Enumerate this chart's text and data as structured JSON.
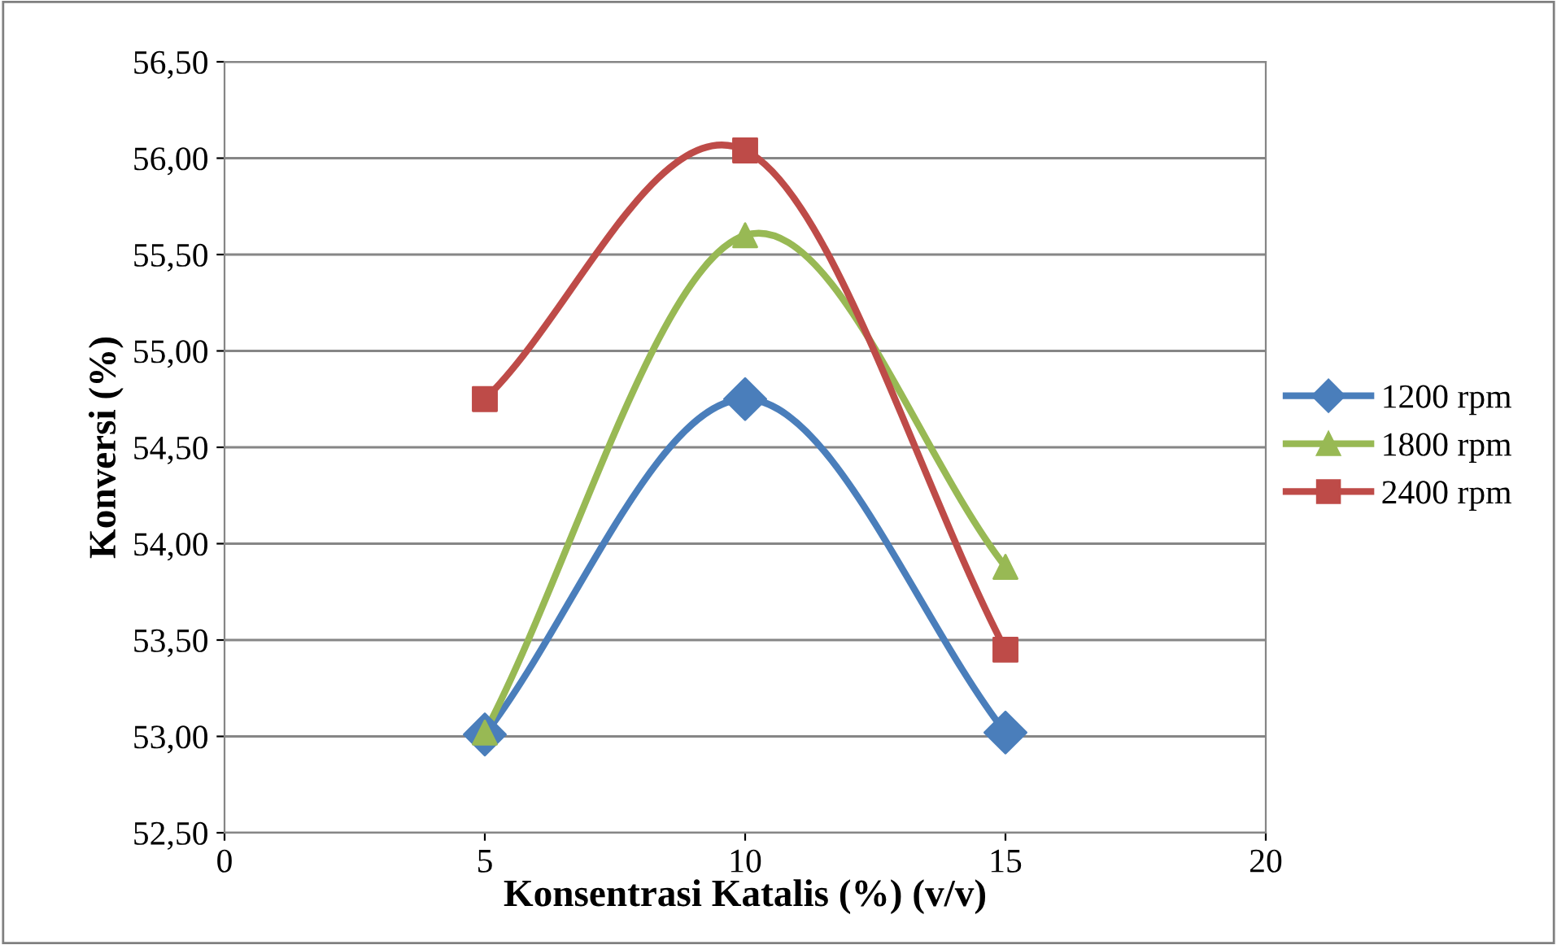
{
  "chart_data": {
    "type": "line",
    "xlabel": "Konsentrasi Katalis (%) (v/v)",
    "ylabel": "Konversi (%)",
    "x": [
      5,
      10,
      15
    ],
    "series": [
      {
        "name": "1200 rpm",
        "color": "#4a7ebb",
        "marker": "diamond",
        "values": [
          53.01,
          54.75,
          53.02
        ]
      },
      {
        "name": "1800 rpm",
        "color": "#98b954",
        "marker": "triangle",
        "values": [
          53.02,
          55.6,
          53.88
        ]
      },
      {
        "name": "2400 rpm",
        "color": "#be4b48",
        "marker": "square",
        "values": [
          54.75,
          56.04,
          53.45
        ]
      }
    ],
    "xlim": [
      0,
      20
    ],
    "xticks": [
      0,
      5,
      10,
      15,
      20
    ],
    "ylim": [
      52.5,
      56.5
    ],
    "yticks": [
      {
        "value": 52.5,
        "label": "52,50"
      },
      {
        "value": 53,
        "label": "53,00"
      },
      {
        "value": 53.5,
        "label": "53,50"
      },
      {
        "value": 54,
        "label": "54,00"
      },
      {
        "value": 54.5,
        "label": "54,50"
      },
      {
        "value": 55,
        "label": "55,00"
      },
      {
        "value": 55.5,
        "label": "55,50"
      },
      {
        "value": 56,
        "label": "56,00"
      },
      {
        "value": 56.5,
        "label": "56,50"
      }
    ],
    "grid": "y",
    "legend": "right",
    "line_style": "solid"
  }
}
